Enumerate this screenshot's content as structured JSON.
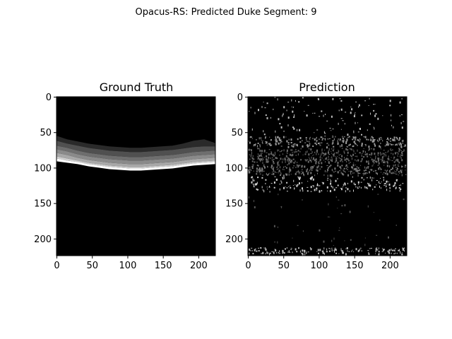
{
  "figure": {
    "suptitle": "Opacus-RS: Predicted Duke Segment: 9"
  },
  "colors": {
    "background": "#ffffff",
    "axis": "#000000",
    "image_bg": "#000000"
  },
  "chart_data": [
    {
      "type": "heatmap",
      "title": "Ground Truth",
      "xlim": [
        0,
        223
      ],
      "ylim": [
        223,
        0
      ],
      "xticks": [
        0,
        50,
        100,
        150,
        200
      ],
      "yticks": [
        0,
        50,
        100,
        150,
        200
      ],
      "colormap": "gray",
      "layers": [
        {
          "gray": "#2a2a2a",
          "top": [
            55,
            60,
            63,
            66,
            68,
            70,
            71,
            72,
            72,
            71,
            70,
            69,
            66,
            62,
            60,
            65
          ],
          "bottom": [
            62,
            66,
            69,
            72,
            74,
            76,
            77,
            78,
            78,
            77,
            76,
            75,
            73,
            71,
            70,
            70
          ]
        },
        {
          "gray": "#505050",
          "top": [
            62,
            66,
            69,
            72,
            74,
            76,
            77,
            78,
            78,
            77,
            76,
            75,
            73,
            71,
            70,
            70
          ],
          "bottom": [
            69,
            72,
            76,
            79,
            81,
            83,
            84,
            85,
            85,
            84,
            83,
            82,
            80,
            78,
            77,
            76
          ]
        },
        {
          "gray": "#6e6e6e",
          "top": [
            69,
            72,
            76,
            79,
            81,
            83,
            84,
            85,
            85,
            84,
            83,
            82,
            80,
            78,
            77,
            76
          ],
          "bottom": [
            74,
            77,
            81,
            84,
            86,
            88,
            89,
            90,
            90,
            89,
            88,
            87,
            85,
            83,
            82,
            81
          ]
        },
        {
          "gray": "#8a8a8a",
          "top": [
            74,
            77,
            81,
            84,
            86,
            88,
            89,
            90,
            90,
            89,
            88,
            87,
            85,
            83,
            82,
            81
          ],
          "bottom": [
            79,
            82,
            86,
            89,
            91,
            93,
            94,
            95,
            95,
            94,
            93,
            92,
            90,
            88,
            87,
            86
          ]
        },
        {
          "gray": "#a8a8a8",
          "top": [
            79,
            82,
            86,
            89,
            91,
            93,
            94,
            95,
            95,
            94,
            93,
            92,
            90,
            88,
            87,
            86
          ],
          "bottom": [
            84,
            87,
            90,
            93,
            95,
            97,
            98,
            99,
            99,
            98,
            97,
            96,
            94,
            92,
            91,
            90
          ]
        },
        {
          "gray": "#d0d0d0",
          "top": [
            84,
            87,
            90,
            93,
            95,
            97,
            98,
            99,
            99,
            98,
            97,
            96,
            94,
            92,
            91,
            90
          ],
          "bottom": [
            87,
            90,
            92,
            95,
            97,
            99,
            100,
            101,
            101,
            100,
            99,
            98,
            96,
            94,
            93,
            92
          ]
        },
        {
          "gray": "#ffffff",
          "top": [
            87,
            90,
            92,
            95,
            97,
            99,
            100,
            101,
            101,
            100,
            99,
            98,
            96,
            94,
            93,
            92
          ],
          "bottom": [
            91,
            93,
            95,
            98,
            100,
            102,
            103,
            104,
            104,
            103,
            102,
            101,
            99,
            97,
            96,
            95
          ]
        }
      ]
    },
    {
      "type": "heatmap",
      "title": "Prediction",
      "xlim": [
        0,
        223
      ],
      "ylim": [
        223,
        0
      ],
      "xticks": [
        0,
        50,
        100,
        150,
        200
      ],
      "yticks": [
        0,
        50,
        100,
        150,
        200
      ],
      "colormap": "gray",
      "bands": [
        {
          "y0": 0,
          "y1": 55,
          "density": 0.12,
          "gray": "#bdbdbd"
        },
        {
          "y0": 55,
          "y1": 72,
          "density": 0.85,
          "gray": "#9a9a9a"
        },
        {
          "y0": 72,
          "y1": 95,
          "density": 0.95,
          "gray": "#6a6a6a"
        },
        {
          "y0": 95,
          "y1": 112,
          "density": 0.9,
          "gray": "#7a7a7a"
        },
        {
          "y0": 112,
          "y1": 135,
          "density": 0.45,
          "gray": "#cfcfcf"
        },
        {
          "y0": 135,
          "y1": 212,
          "density": 0.03,
          "gray": "#555555"
        },
        {
          "y0": 212,
          "y1": 223,
          "density": 0.8,
          "gray": "#bdbdbd"
        }
      ]
    }
  ]
}
